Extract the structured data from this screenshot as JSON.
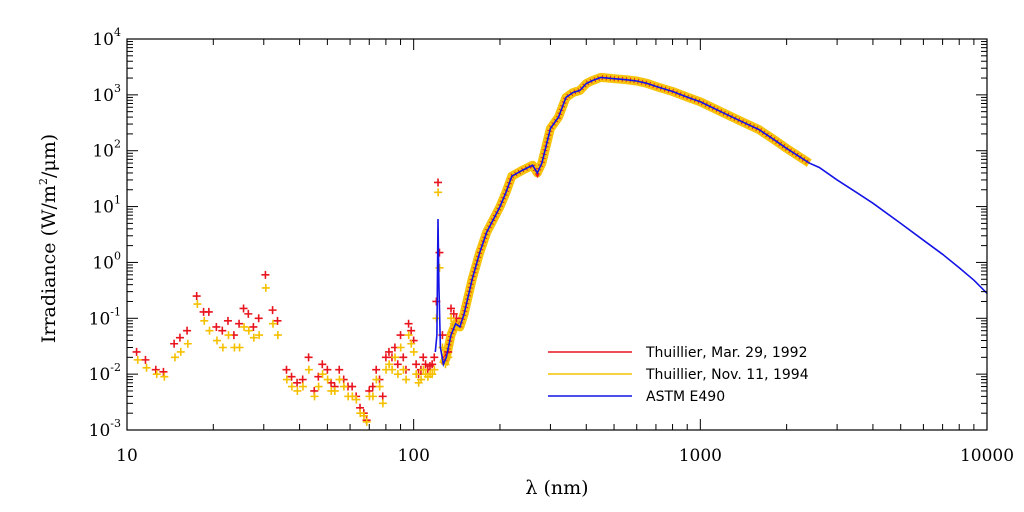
{
  "chart_data": {
    "type": "scatter",
    "xlabel": "λ (nm)",
    "ylabel_parts": [
      "Irradiance (W/m",
      "2",
      "/μm)"
    ],
    "xscale": "log",
    "yscale": "log",
    "xlim": [
      10,
      10000
    ],
    "ylim": [
      0.001,
      10000
    ],
    "x_ticks": [
      {
        "value": 10,
        "label": "10"
      },
      {
        "value": 100,
        "label": "100"
      },
      {
        "value": 1000,
        "label": "1000"
      },
      {
        "value": 10000,
        "label": "10000"
      }
    ],
    "y_ticks": [
      {
        "value": 10000,
        "base": "10",
        "exp": "4"
      },
      {
        "value": 1000,
        "base": "10",
        "exp": "3"
      },
      {
        "value": 100,
        "base": "10",
        "exp": "2"
      },
      {
        "value": 10,
        "base": "10",
        "exp": "1"
      },
      {
        "value": 1,
        "base": "10",
        "exp": "0"
      },
      {
        "value": 0.1,
        "base": "10",
        "exp": "-1"
      },
      {
        "value": 0.01,
        "base": "10",
        "exp": "-2"
      },
      {
        "value": 0.001,
        "base": "10",
        "exp": "-3"
      }
    ],
    "legend_position": "lower-right",
    "series": [
      {
        "name": "Thuillier, Mar. 29, 1992",
        "color": "#e8141e",
        "marker": "plus",
        "points": [
          [
            10.8,
            0.025
          ],
          [
            11.6,
            0.018
          ],
          [
            12.6,
            0.012
          ],
          [
            13.4,
            0.011
          ],
          [
            14.6,
            0.035
          ],
          [
            15.3,
            0.045
          ],
          [
            16.2,
            0.06
          ],
          [
            17.5,
            0.25
          ],
          [
            18.5,
            0.13
          ],
          [
            19.3,
            0.13
          ],
          [
            20.5,
            0.07
          ],
          [
            21.5,
            0.06
          ],
          [
            22.5,
            0.09
          ],
          [
            23.6,
            0.05
          ],
          [
            24.6,
            0.08
          ],
          [
            25.5,
            0.15
          ],
          [
            26.5,
            0.12
          ],
          [
            27.6,
            0.07
          ],
          [
            28.8,
            0.1
          ],
          [
            30.4,
            0.6
          ],
          [
            32.2,
            0.14
          ],
          [
            33.5,
            0.09
          ],
          [
            36,
            0.012
          ],
          [
            37.5,
            0.009
          ],
          [
            39.2,
            0.007
          ],
          [
            41,
            0.008
          ],
          [
            43,
            0.02
          ],
          [
            45,
            0.005
          ],
          [
            46.5,
            0.009
          ],
          [
            48,
            0.015
          ],
          [
            50,
            0.012
          ],
          [
            51.5,
            0.007
          ],
          [
            53,
            0.006
          ],
          [
            55,
            0.012
          ],
          [
            57,
            0.008
          ],
          [
            59,
            0.006
          ],
          [
            61,
            0.006
          ],
          [
            63,
            0.004
          ],
          [
            65,
            0.0025
          ],
          [
            67,
            0.002
          ],
          [
            68.5,
            0.0015
          ],
          [
            70,
            0.005
          ],
          [
            72,
            0.006
          ],
          [
            74,
            0.012
          ],
          [
            76,
            0.008
          ],
          [
            78,
            0.004
          ],
          [
            80,
            0.02
          ],
          [
            82,
            0.025
          ],
          [
            84,
            0.02
          ],
          [
            86,
            0.03
          ],
          [
            88,
            0.015
          ],
          [
            90,
            0.05
          ],
          [
            92,
            0.02
          ],
          [
            94,
            0.012
          ],
          [
            96,
            0.08
          ],
          [
            98,
            0.06
          ],
          [
            100,
            0.04
          ],
          [
            102,
            0.015
          ],
          [
            104,
            0.01
          ],
          [
            106,
            0.012
          ],
          [
            108,
            0.02
          ],
          [
            110,
            0.015
          ],
          [
            112,
            0.012
          ],
          [
            114,
            0.014
          ],
          [
            116,
            0.015
          ],
          [
            118,
            0.02
          ],
          [
            120,
            0.2
          ],
          [
            121.6,
            27
          ],
          [
            123,
            1.5
          ],
          [
            126,
            0.05
          ],
          [
            129,
            0.02
          ],
          [
            132,
            0.025
          ],
          [
            135,
            0.15
          ],
          [
            138,
            0.12
          ],
          [
            141,
            0.1
          ]
        ]
      },
      {
        "name": "Thuillier, Nov. 11, 1994",
        "color": "#f5c000",
        "marker": "plus",
        "points": [
          [
            10.9,
            0.018
          ],
          [
            11.7,
            0.013
          ],
          [
            12.7,
            0.01
          ],
          [
            13.5,
            0.009
          ],
          [
            14.7,
            0.02
          ],
          [
            15.4,
            0.025
          ],
          [
            16.3,
            0.035
          ],
          [
            17.6,
            0.18
          ],
          [
            18.6,
            0.09
          ],
          [
            19.4,
            0.06
          ],
          [
            20.6,
            0.04
          ],
          [
            21.6,
            0.03
          ],
          [
            22.6,
            0.05
          ],
          [
            23.7,
            0.03
          ],
          [
            24.7,
            0.03
          ],
          [
            25.6,
            0.07
          ],
          [
            26.6,
            0.06
          ],
          [
            27.7,
            0.045
          ],
          [
            28.9,
            0.05
          ],
          [
            30.5,
            0.35
          ],
          [
            32.3,
            0.08
          ],
          [
            33.6,
            0.05
          ],
          [
            36.1,
            0.008
          ],
          [
            37.6,
            0.006
          ],
          [
            39.3,
            0.005
          ],
          [
            41.1,
            0.006
          ],
          [
            43.1,
            0.012
          ],
          [
            45.1,
            0.004
          ],
          [
            46.6,
            0.006
          ],
          [
            48.1,
            0.01
          ],
          [
            50.1,
            0.008
          ],
          [
            51.6,
            0.005
          ],
          [
            53.1,
            0.005
          ],
          [
            55.1,
            0.008
          ],
          [
            57.1,
            0.006
          ],
          [
            59.1,
            0.004
          ],
          [
            61.1,
            0.004
          ],
          [
            63.1,
            0.0035
          ],
          [
            65.1,
            0.002
          ],
          [
            67.1,
            0.0018
          ],
          [
            68.6,
            0.0014
          ],
          [
            70.1,
            0.004
          ],
          [
            72.1,
            0.004
          ],
          [
            74.1,
            0.008
          ],
          [
            76.1,
            0.006
          ],
          [
            78.1,
            0.003
          ],
          [
            80.1,
            0.012
          ],
          [
            82.1,
            0.015
          ],
          [
            84.1,
            0.012
          ],
          [
            86.1,
            0.02
          ],
          [
            88.1,
            0.01
          ],
          [
            90.1,
            0.03
          ],
          [
            92.1,
            0.012
          ],
          [
            94.1,
            0.008
          ],
          [
            96.1,
            0.05
          ],
          [
            98.1,
            0.035
          ],
          [
            100.1,
            0.025
          ],
          [
            102.1,
            0.01
          ],
          [
            104.1,
            0.007
          ],
          [
            106.1,
            0.008
          ],
          [
            108.1,
            0.012
          ],
          [
            110.1,
            0.01
          ],
          [
            112.1,
            0.009
          ],
          [
            114.1,
            0.01
          ],
          [
            116.1,
            0.01
          ],
          [
            118.1,
            0.012
          ],
          [
            120.1,
            0.1
          ],
          [
            121.7,
            18
          ],
          [
            123.1,
            0.8
          ],
          [
            126.1,
            0.03
          ],
          [
            129.1,
            0.015
          ],
          [
            132.1,
            0.02
          ],
          [
            135.1,
            0.1
          ],
          [
            138.1,
            0.08
          ],
          [
            141.1,
            0.07
          ]
        ]
      },
      {
        "name": "ASTM E490",
        "color": "#1414e6",
        "marker": "line",
        "points": [
          [
            119,
            0.025
          ],
          [
            120.5,
            0.05
          ],
          [
            121.6,
            6
          ],
          [
            122.5,
            0.4
          ],
          [
            124,
            0.03
          ],
          [
            127,
            0.015
          ],
          [
            130,
            0.02
          ],
          [
            135,
            0.05
          ],
          [
            140,
            0.08
          ],
          [
            145,
            0.07
          ],
          [
            150,
            0.12
          ],
          [
            160,
            0.5
          ],
          [
            170,
            1.5
          ],
          [
            180,
            3.5
          ],
          [
            190,
            6
          ],
          [
            200,
            10
          ],
          [
            210,
            18
          ],
          [
            220,
            35
          ],
          [
            240,
            45
          ],
          [
            260,
            55
          ],
          [
            270,
            40
          ],
          [
            280,
            60
          ],
          [
            300,
            250
          ],
          [
            320,
            400
          ],
          [
            340,
            900
          ],
          [
            360,
            1100
          ],
          [
            380,
            1200
          ],
          [
            400,
            1600
          ],
          [
            420,
            1800
          ],
          [
            450,
            2050
          ],
          [
            500,
            1950
          ],
          [
            550,
            1870
          ],
          [
            600,
            1770
          ],
          [
            650,
            1610
          ],
          [
            700,
            1420
          ],
          [
            800,
            1150
          ],
          [
            900,
            910
          ],
          [
            1000,
            750
          ],
          [
            1200,
            480
          ],
          [
            1400,
            330
          ],
          [
            1600,
            240
          ],
          [
            1800,
            160
          ],
          [
            2000,
            110
          ],
          [
            2200,
            80
          ],
          [
            2400,
            60
          ],
          [
            2600,
            50
          ],
          [
            3000,
            30
          ],
          [
            3500,
            18
          ],
          [
            4000,
            11.5
          ],
          [
            5000,
            5
          ],
          [
            6000,
            2.5
          ],
          [
            7000,
            1.4
          ],
          [
            8000,
            0.8
          ],
          [
            9000,
            0.48
          ],
          [
            10000,
            0.28
          ]
        ]
      }
    ]
  }
}
